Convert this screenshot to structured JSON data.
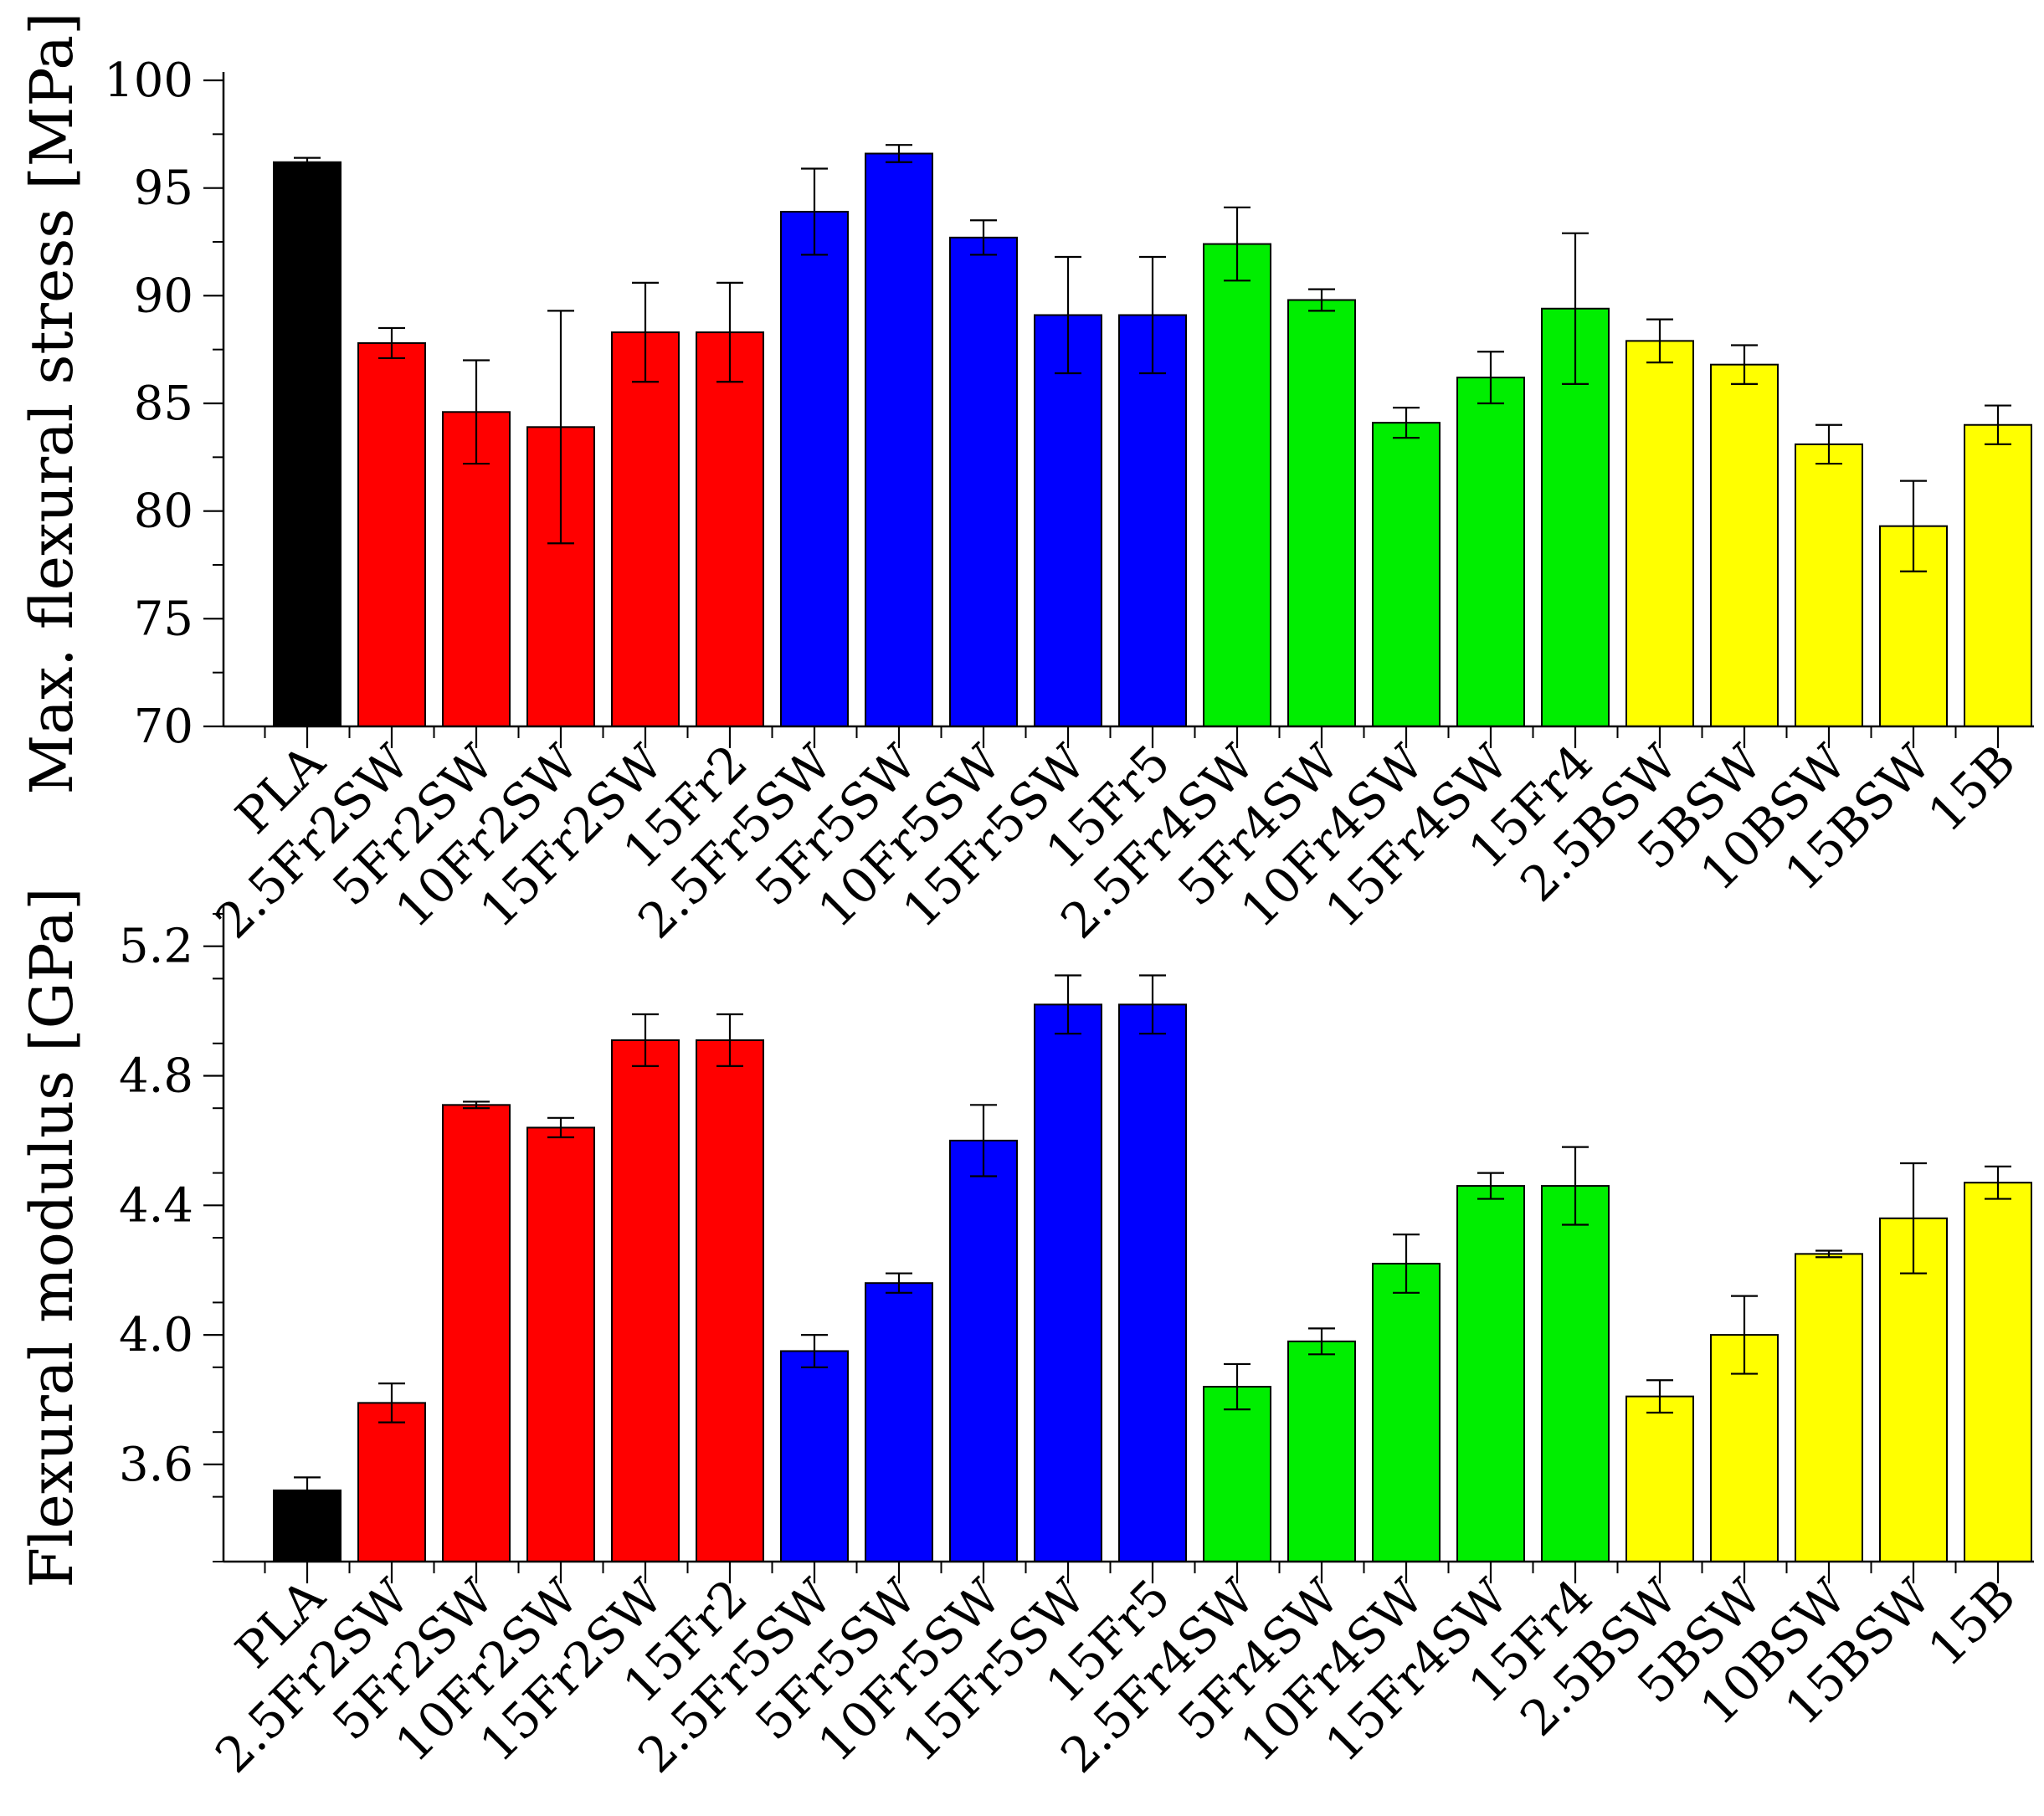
{
  "chart_data": [
    {
      "type": "bar",
      "title": "",
      "xlabel": "",
      "ylabel": "Max. flexural stress [MPa]",
      "ylim": [
        70,
        100
      ],
      "yticks": [
        "70",
        "75",
        "80",
        "85",
        "90",
        "95",
        "100"
      ],
      "yminor_step": 2.5,
      "grid": false,
      "categories": [
        "PLA",
        "2.5Fr2SW",
        "5Fr2SW",
        "10Fr2SW",
        "15Fr2SW",
        "15Fr2",
        "2.5Fr5SW",
        "5Fr5SW",
        "10Fr5SW",
        "15Fr5SW",
        "15Fr5",
        "2.5Fr4SW",
        "5Fr4SW",
        "10Fr4SW",
        "15Fr4SW",
        "15Fr4",
        "2.5BSW",
        "5BSW",
        "10BSW",
        "15BSW",
        "15B"
      ],
      "values": [
        96.2,
        87.8,
        84.6,
        83.9,
        88.3,
        88.3,
        93.9,
        96.6,
        92.7,
        89.1,
        89.1,
        92.4,
        89.8,
        84.1,
        86.2,
        89.4,
        87.9,
        86.8,
        83.1,
        79.3,
        84.0
      ],
      "errors": [
        0.2,
        0.7,
        2.4,
        5.4,
        2.3,
        2.3,
        2.0,
        0.4,
        0.8,
        2.7,
        2.7,
        1.7,
        0.5,
        0.7,
        1.2,
        3.5,
        1.0,
        0.9,
        0.9,
        2.1,
        0.9
      ],
      "colors": [
        "#000000",
        "#ff0000",
        "#ff0000",
        "#ff0000",
        "#ff0000",
        "#ff0000",
        "#0000ff",
        "#0000ff",
        "#0000ff",
        "#0000ff",
        "#0000ff",
        "#00ee00",
        "#00ee00",
        "#00ee00",
        "#00ee00",
        "#00ee00",
        "#ffff00",
        "#ffff00",
        "#ffff00",
        "#ffff00",
        "#ffff00"
      ]
    },
    {
      "type": "bar",
      "title": "",
      "xlabel": "",
      "ylabel": "Flexural modulus [GPa]",
      "ylim": [
        3.3,
        5.3
      ],
      "yticks": [
        "3.6",
        "4.0",
        "4.4",
        "4.8",
        "5.2"
      ],
      "yminor_step": 0.2,
      "grid": false,
      "categories": [
        "PLA",
        "2.5Fr2SW",
        "5Fr2SW",
        "10Fr2SW",
        "15Fr2SW",
        "15Fr2",
        "2.5Fr5SW",
        "5Fr5SW",
        "10Fr5SW",
        "15Fr5SW",
        "15Fr5",
        "2.5Fr4SW",
        "5Fr4SW",
        "10Fr4SW",
        "15Fr4SW",
        "15Fr4",
        "2.5BSW",
        "5BSW",
        "10BSW",
        "15BSW",
        "15B"
      ],
      "values": [
        3.52,
        3.79,
        4.71,
        4.64,
        4.91,
        4.91,
        3.95,
        4.16,
        4.6,
        5.02,
        5.02,
        3.84,
        3.98,
        4.22,
        4.46,
        4.46,
        3.81,
        4.0,
        4.25,
        4.36,
        4.47
      ],
      "errors": [
        0.04,
        0.06,
        0.01,
        0.03,
        0.08,
        0.08,
        0.05,
        0.03,
        0.11,
        0.09,
        0.09,
        0.07,
        0.04,
        0.09,
        0.04,
        0.12,
        0.05,
        0.12,
        0.01,
        0.17,
        0.05
      ],
      "colors": [
        "#000000",
        "#ff0000",
        "#ff0000",
        "#ff0000",
        "#ff0000",
        "#ff0000",
        "#0000ff",
        "#0000ff",
        "#0000ff",
        "#0000ff",
        "#0000ff",
        "#00ee00",
        "#00ee00",
        "#00ee00",
        "#00ee00",
        "#00ee00",
        "#ffff00",
        "#ffff00",
        "#ffff00",
        "#ffff00",
        "#ffff00"
      ]
    }
  ]
}
